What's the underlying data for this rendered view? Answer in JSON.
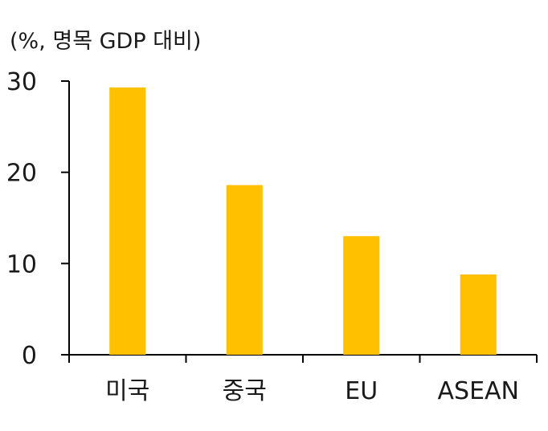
{
  "chart_data": {
    "type": "bar",
    "unit_label": "(%, 명목 GDP 대비)",
    "categories": [
      "미국",
      "중국",
      "EU",
      "ASEAN"
    ],
    "values": [
      29.3,
      18.6,
      13.0,
      8.8
    ],
    "ylim": [
      0,
      30
    ],
    "yticks": [
      0,
      10,
      20,
      30
    ],
    "ytick_labels": [
      "0",
      "10",
      "20",
      "30"
    ],
    "bar_color": "#FFC000",
    "axis_color": "#000000",
    "grid": false,
    "legend": "none"
  }
}
